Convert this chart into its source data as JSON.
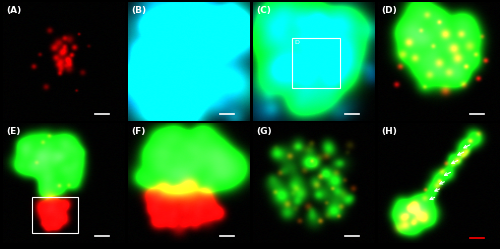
{
  "figsize": [
    5.0,
    2.49
  ],
  "dpi": 100,
  "background_color": "#000000",
  "panel_labels": [
    "(A)",
    "(B)",
    "(C)",
    "(D)",
    "(E)",
    "(F)",
    "(G)",
    "(H)"
  ],
  "label_color": "#ffffff",
  "label_fontsize": 6.5,
  "grid_rows": 2,
  "grid_cols": 4,
  "scalebar_color": "#ffffff",
  "scalebar_color_H": "#ff0000"
}
